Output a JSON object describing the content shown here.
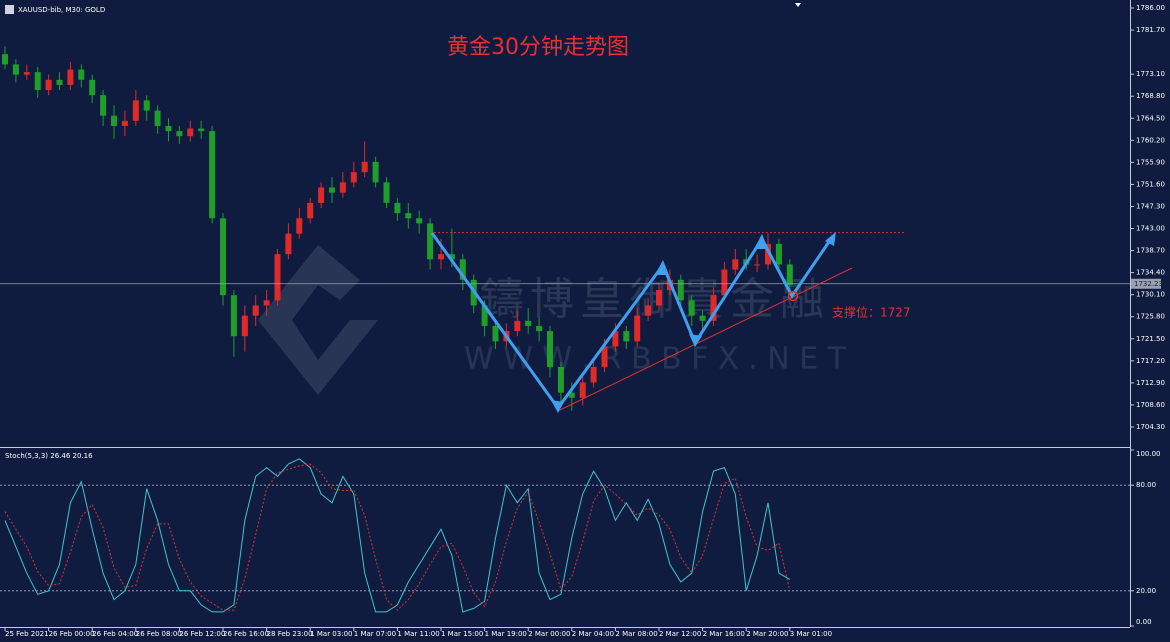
{
  "chart_data": [
    {
      "type": "candlestick",
      "header": "XAUUSD-bib, M30: GOLD",
      "title": "黄金30分钟走势图",
      "annotation": "支撑位：1727",
      "watermark_title": "鑄博皇御貴金融",
      "watermark_url": "W W W . R B B F X . N E T",
      "categories": [
        "25 Feb 2021",
        null,
        null,
        null,
        "26 Feb 00:00",
        null,
        null,
        null,
        "26 Feb 04:00",
        null,
        null,
        null,
        "26 Feb 08:00",
        null,
        null,
        null,
        "26 Feb 12:00",
        null,
        null,
        null,
        "26 Feb 16:00",
        null,
        null,
        null,
        "28 Feb 23:00",
        null,
        null,
        null,
        "1 Mar 03:00",
        null,
        null,
        null,
        "1 Mar 07:00",
        null,
        null,
        null,
        "1 Mar 11:00",
        null,
        null,
        null,
        "1 Mar 15:00",
        null,
        null,
        null,
        "1 Mar 19:00",
        null,
        null,
        null,
        "2 Mar 00:00",
        null,
        null,
        null,
        "2 Mar 04:00",
        null,
        null,
        null,
        "2 Mar 08:00",
        null,
        null,
        null,
        "2 Mar 12:00",
        null,
        null,
        null,
        "2 Mar 16:00",
        null,
        null,
        null,
        "2 Mar 20:00",
        null,
        null,
        null,
        "3 Mar 01:00"
      ],
      "open": [
        1777,
        1775,
        1773,
        1773.5,
        1770,
        1772,
        1771,
        1774,
        1772,
        1769,
        1765,
        1763,
        1764,
        1768,
        1766,
        1763,
        1762,
        1761,
        1762.5,
        1762,
        1745,
        1730,
        1722,
        1726,
        1728,
        1729,
        1738,
        1742,
        1745,
        1748,
        1751,
        1750,
        1752,
        1754,
        1756,
        1752,
        1748,
        1746,
        1745,
        1744,
        1737,
        1738,
        1737,
        1733,
        1728,
        1724,
        1721,
        1723,
        1725,
        1724,
        1723,
        1716,
        1711,
        1710,
        1713,
        1716,
        1720,
        1723,
        1721,
        1726,
        1728,
        1731,
        1733,
        1729,
        1726,
        1725,
        1730,
        1735,
        1737,
        1736,
        1736,
        1740,
        1736
      ],
      "high": [
        1778.5,
        1776,
        1775,
        1774.5,
        1773,
        1773.5,
        1775.5,
        1775,
        1773,
        1770,
        1767,
        1766,
        1770,
        1769,
        1767,
        1764.5,
        1763,
        1764,
        1764,
        1763,
        1746,
        1731,
        1728,
        1730,
        1731,
        1739,
        1744,
        1747,
        1749,
        1752,
        1753,
        1754,
        1756,
        1760,
        1757,
        1753,
        1749,
        1748,
        1746.5,
        1745,
        1741,
        1743,
        1738,
        1734,
        1729,
        1725,
        1724.5,
        1727,
        1727.5,
        1725.5,
        1724,
        1717,
        1713,
        1714.5,
        1717.5,
        1721.5,
        1724.5,
        1724,
        1727.5,
        1729.5,
        1732.5,
        1735,
        1734,
        1730,
        1727,
        1731.5,
        1736.5,
        1739,
        1739,
        1738,
        1742,
        1741,
        1737
      ],
      "low": [
        1774,
        1771.5,
        1772,
        1768.5,
        1769,
        1770,
        1770,
        1770.5,
        1767.5,
        1763,
        1760.5,
        1761,
        1763,
        1764,
        1761.5,
        1760,
        1759.5,
        1760,
        1760.5,
        1744,
        1728,
        1718,
        1719,
        1724,
        1726,
        1728,
        1737,
        1741,
        1744,
        1747,
        1748,
        1749,
        1751,
        1753,
        1751,
        1747,
        1744.5,
        1743,
        1742,
        1735,
        1735,
        1735.5,
        1731,
        1726.5,
        1722,
        1719.5,
        1720,
        1722,
        1722.5,
        1721,
        1714,
        1709,
        1707.5,
        1708.5,
        1712,
        1715,
        1719,
        1719.5,
        1720,
        1725,
        1727,
        1730,
        1727.5,
        1724,
        1722.5,
        1724,
        1729,
        1734,
        1735,
        1734.5,
        1735,
        1735,
        1730
      ],
      "close": [
        1775,
        1773,
        1773.5,
        1770,
        1772,
        1771,
        1774,
        1772,
        1769,
        1765,
        1763,
        1764,
        1768,
        1766,
        1763,
        1762,
        1761,
        1762.5,
        1762,
        1745,
        1730,
        1722,
        1726,
        1728,
        1729,
        1738,
        1742,
        1745,
        1748,
        1751,
        1750,
        1752,
        1754,
        1756,
        1752,
        1748,
        1746,
        1745,
        1744,
        1737,
        1738,
        1737,
        1733,
        1728,
        1724,
        1721,
        1723,
        1725,
        1724,
        1723,
        1716,
        1711,
        1710,
        1713,
        1716,
        1720,
        1723,
        1721,
        1726,
        1728,
        1731,
        1733,
        1729,
        1726,
        1725,
        1730,
        1735,
        1737,
        1736,
        1736,
        1740,
        1736,
        1732
      ],
      "up_color": "#e02a2a",
      "down_color": "#1f9e2a",
      "last_price": 1732.23,
      "resistance": 1742.2,
      "ylim": [
        1700.4,
        1787.56
      ],
      "yticks": [
        {
          "value": 1786,
          "label": "1786.00"
        },
        {
          "value": 1781.7,
          "label": "1781.70"
        },
        {
          "value": 1773.1,
          "label": "1773.10"
        },
        {
          "value": 1768.8,
          "label": "1768.80"
        },
        {
          "value": 1764.5,
          "label": "1764.50"
        },
        {
          "value": 1760.2,
          "label": "1760.20"
        },
        {
          "value": 1755.9,
          "label": "1755.90"
        },
        {
          "value": 1751.6,
          "label": "1751.60"
        },
        {
          "value": 1747.3,
          "label": "1747.30"
        },
        {
          "value": 1743,
          "label": "1743.00"
        },
        {
          "value": 1738.7,
          "label": "1738.70"
        },
        {
          "value": 1734.4,
          "label": "1734.40"
        },
        {
          "value": 1730.1,
          "label": "1730.10"
        },
        {
          "value": 1725.8,
          "label": "1725.80"
        },
        {
          "value": 1721.5,
          "label": "1721.50"
        },
        {
          "value": 1717.2,
          "label": "1717.20"
        },
        {
          "value": 1712.9,
          "label": "1712.90"
        },
        {
          "value": 1708.6,
          "label": "1708.60"
        },
        {
          "value": 1704.3,
          "label": "1704.30"
        }
      ]
    },
    {
      "type": "line",
      "label": "Stoch(5,3,3) 26.46 20.16",
      "series": [
        {
          "color": "#3fc6cf",
          "dash": false,
          "values": [
            60,
            45,
            30,
            18,
            20,
            35,
            70,
            82,
            55,
            30,
            15,
            20,
            35,
            78,
            60,
            35,
            20,
            20,
            12,
            8,
            8,
            12,
            60,
            85,
            90,
            85,
            92,
            95,
            90,
            75,
            70,
            85,
            75,
            30,
            8,
            8,
            12,
            25,
            35,
            45,
            55,
            40,
            8,
            10,
            14,
            50,
            80,
            70,
            78,
            30,
            15,
            18,
            50,
            75,
            88,
            78,
            60,
            70,
            60,
            72,
            58,
            35,
            25,
            30,
            65,
            88,
            90,
            75,
            20,
            40,
            70,
            30,
            26.46
          ]
        },
        {
          "color": "#e03434",
          "dash": true,
          "values": [
            65,
            55,
            45,
            31,
            23,
            24,
            42,
            62,
            69,
            56,
            33,
            22,
            23,
            44,
            58,
            58,
            38,
            25,
            17,
            13,
            9,
            9,
            27,
            52,
            78,
            87,
            89,
            91,
            92,
            87,
            78,
            77,
            77,
            63,
            38,
            15,
            9,
            15,
            24,
            35,
            45,
            47,
            34,
            19,
            11,
            25,
            48,
            67,
            76,
            59,
            41,
            21,
            28,
            48,
            71,
            80,
            75,
            69,
            63,
            67,
            63,
            55,
            39,
            30,
            40,
            61,
            81,
            84,
            62,
            45,
            43,
            47,
            20.16
          ]
        }
      ],
      "levels": [
        80,
        20
      ],
      "ylim": [
        0,
        100
      ],
      "yticks": [
        {
          "value": 100,
          "label": "100.00"
        },
        {
          "value": 80,
          "label": "80.00"
        },
        {
          "value": 20,
          "label": "20.00"
        },
        {
          "value": 0,
          "label": "0.00"
        }
      ]
    }
  ]
}
